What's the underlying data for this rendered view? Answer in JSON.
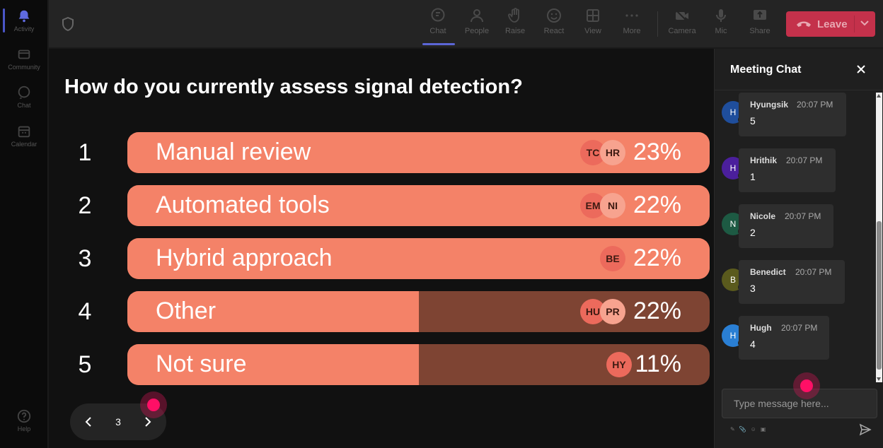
{
  "rail": {
    "items": [
      {
        "label": "Activity",
        "icon": "bell-icon",
        "active": true
      },
      {
        "label": "Community",
        "icon": "community-icon"
      },
      {
        "label": "Chat",
        "icon": "chat-icon"
      },
      {
        "label": "Calendar",
        "icon": "calendar-icon"
      }
    ],
    "help": {
      "label": "Help",
      "icon": "help-icon"
    }
  },
  "toolbar": {
    "chat": "Chat",
    "people": "People",
    "raise": "Raise",
    "react": "React",
    "view": "View",
    "more": "More",
    "camera": "Camera",
    "mic": "Mic",
    "share": "Share",
    "leave": "Leave",
    "accent_color": "#5b66d6",
    "leave_color": "#c4314b"
  },
  "poll": {
    "question": "How do you currently assess signal detection?",
    "options": [
      {
        "number": "1",
        "label": "Manual review",
        "percent": "23%",
        "fill": 1.0,
        "avatars": [
          "TC",
          "HR"
        ]
      },
      {
        "number": "2",
        "label": "Automated tools",
        "percent": "22%",
        "fill": 1.0,
        "avatars": [
          "EM",
          "NI"
        ]
      },
      {
        "number": "3",
        "label": "Hybrid approach",
        "percent": "22%",
        "fill": 1.0,
        "avatars": [
          "BE"
        ]
      },
      {
        "number": "4",
        "label": "Other",
        "percent": "22%",
        "fill": 0.5,
        "avatars": [
          "HU",
          "PR"
        ]
      },
      {
        "number": "5",
        "label": "Not sure",
        "percent": "11%",
        "fill": 0.5,
        "avatars": [
          "HY"
        ]
      }
    ],
    "bar_color": "#f48268",
    "track_color": "#7e4433"
  },
  "pager": {
    "page": "3"
  },
  "chat": {
    "title": "Meeting Chat",
    "messages": [
      {
        "initial": "H",
        "name": "Hyungsik",
        "time": "20:07 PM",
        "text": "5",
        "color": "#1f4e9c"
      },
      {
        "initial": "H",
        "name": "Hrithik",
        "time": "20:07 PM",
        "text": "1",
        "color": "#4b1f9c"
      },
      {
        "initial": "N",
        "name": "Nicole",
        "time": "20:07 PM",
        "text": "2",
        "color": "#1d5a43"
      },
      {
        "initial": "B",
        "name": "Benedict",
        "time": "20:07 PM",
        "text": "3",
        "color": "#5a5a1d"
      },
      {
        "initial": "H",
        "name": "Hugh",
        "time": "20:07 PM",
        "text": "4",
        "color": "#2a7fd4"
      }
    ],
    "input_placeholder": "Type message here..."
  }
}
